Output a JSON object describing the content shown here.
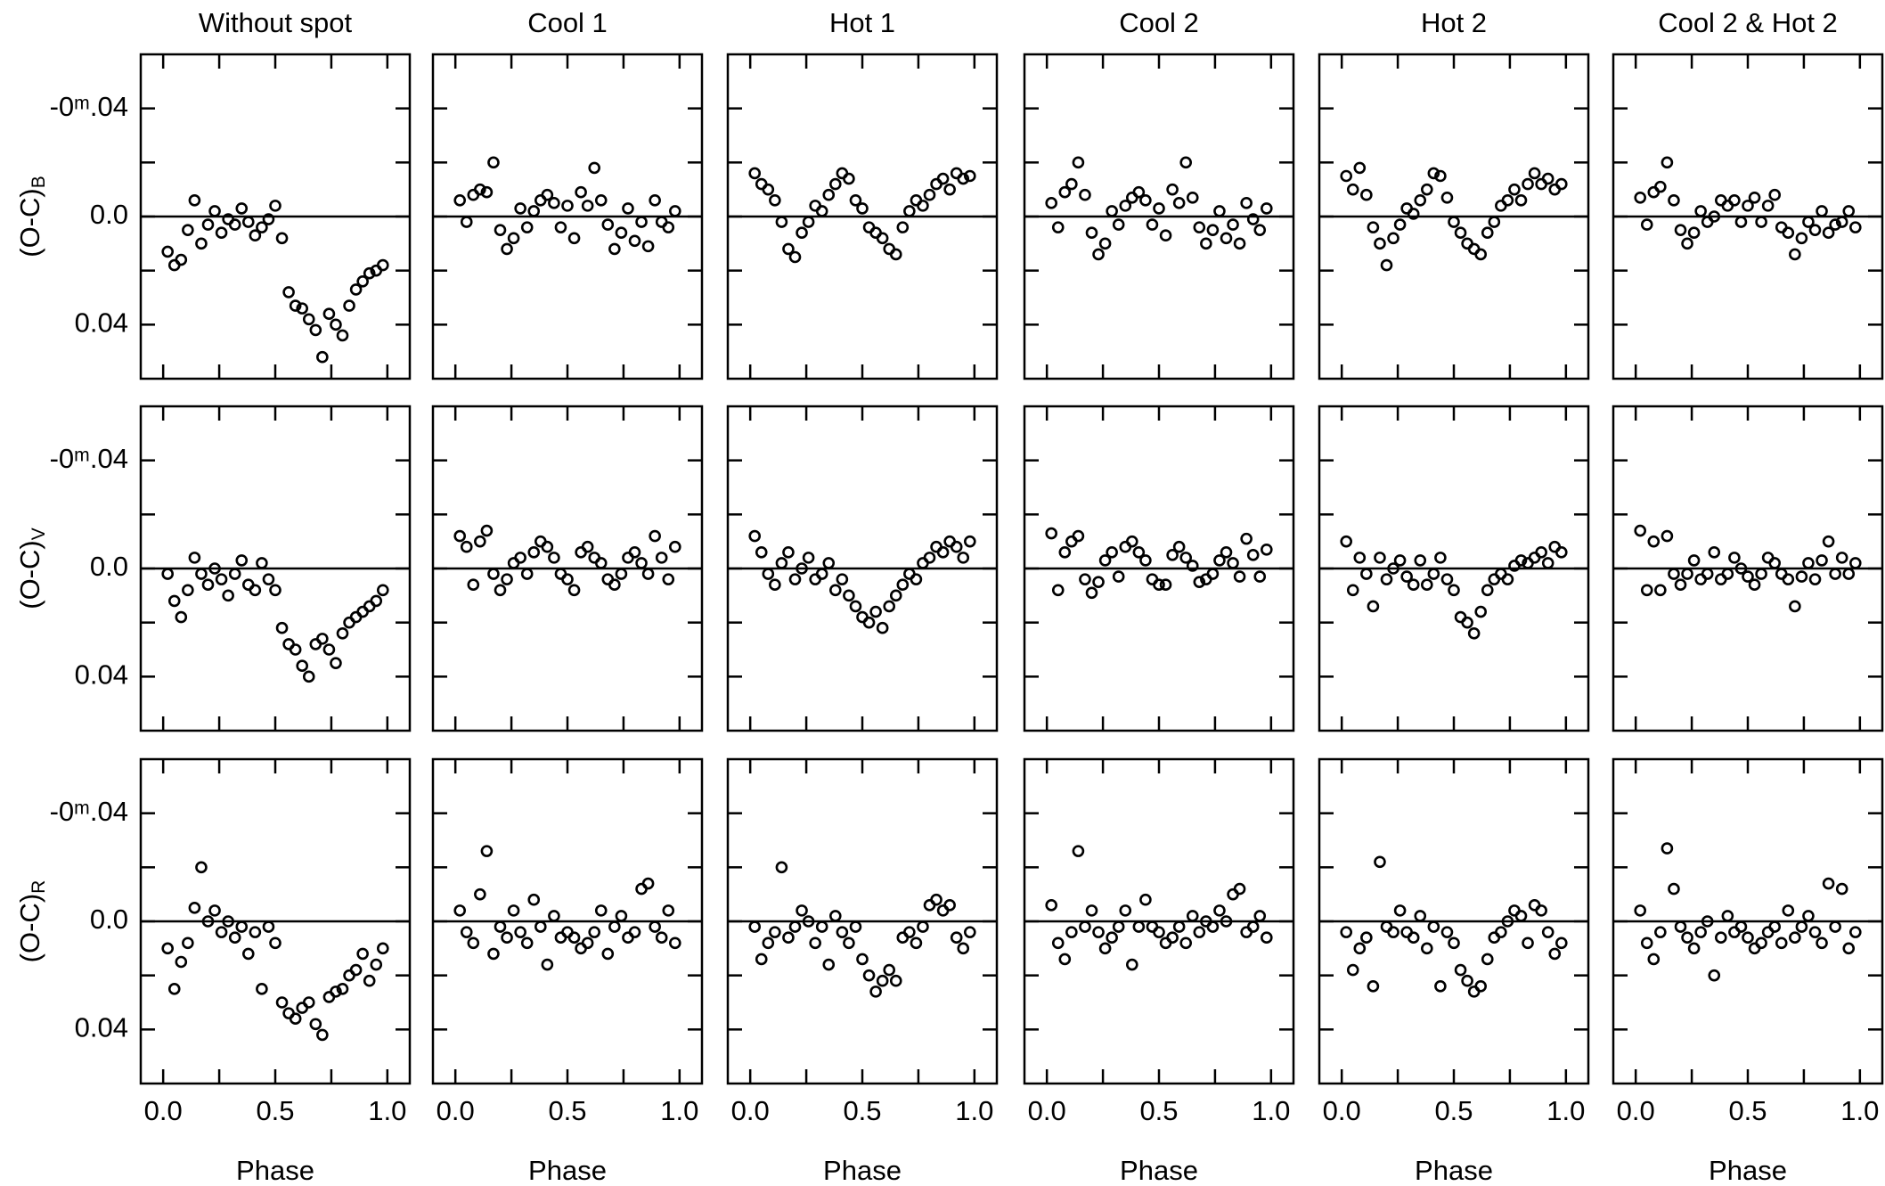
{
  "chart_data": {
    "type": "scatter",
    "columns": [
      "Without spot",
      "Cool 1",
      "Hot 1",
      "Cool 2",
      "Hot 2",
      "Cool 2 & Hot 2"
    ],
    "rows": [
      {
        "label": "(O-C)",
        "sub": "B"
      },
      {
        "label": "(O-C)",
        "sub": "V"
      },
      {
        "label": "(O-C)",
        "sub": "R"
      }
    ],
    "xlabel": "Phase",
    "xlim": [
      -0.1,
      1.1
    ],
    "xticks": [
      {
        "value": 0,
        "label": "0.0"
      },
      0.5,
      {
        "value": 1,
        "label": "1.0"
      }
    ],
    "xminor": [
      0.25,
      0.75
    ],
    "ylim": [
      -0.06,
      0.06
    ],
    "y_inverted": true,
    "yticks": [
      {
        "value": -0.04,
        "label": "-0ᵐ.04"
      },
      {
        "value": 0,
        "label": "0.0"
      },
      0.04
    ],
    "yminor": [
      -0.02,
      0.02
    ],
    "hline": 0,
    "marker_color": "#000000",
    "x": [
      0.02,
      0.05,
      0.08,
      0.11,
      0.14,
      0.17,
      0.2,
      0.23,
      0.26,
      0.29,
      0.32,
      0.35,
      0.38,
      0.41,
      0.44,
      0.47,
      0.5,
      0.53,
      0.56,
      0.59,
      0.62,
      0.65,
      0.68,
      0.71,
      0.74,
      0.77,
      0.8,
      0.83,
      0.86,
      0.89,
      0.92,
      0.95,
      0.98
    ],
    "panels": [
      [
        [
          0.013,
          0.018,
          0.016,
          0.005,
          -0.006,
          0.01,
          0.003,
          -0.002,
          0.006,
          0.001,
          0.003,
          -0.003,
          0.002,
          0.007,
          0.004,
          0.001,
          -0.004,
          0.008,
          0.028,
          0.033,
          0.034,
          0.038,
          0.042,
          0.052,
          0.036,
          0.04,
          0.044,
          0.033,
          0.027,
          0.024,
          0.021,
          0.02,
          0.018
        ],
        [
          -0.006,
          0.002,
          -0.008,
          -0.01,
          -0.009,
          -0.02,
          0.005,
          0.012,
          0.008,
          -0.003,
          0.004,
          -0.002,
          -0.006,
          -0.008,
          -0.005,
          0.004,
          -0.004,
          0.008,
          -0.009,
          -0.004,
          -0.018,
          -0.006,
          0.003,
          0.012,
          0.006,
          -0.003,
          0.009,
          0.002,
          0.011,
          -0.006,
          0.002,
          0.004,
          -0.002
        ],
        [
          -0.016,
          -0.012,
          -0.01,
          -0.006,
          0.002,
          0.012,
          0.015,
          0.006,
          0.002,
          -0.004,
          -0.002,
          -0.008,
          -0.012,
          -0.016,
          -0.014,
          -0.006,
          -0.003,
          0.004,
          0.006,
          0.008,
          0.012,
          0.014,
          0.004,
          -0.002,
          -0.006,
          -0.004,
          -0.008,
          -0.012,
          -0.014,
          -0.01,
          -0.016,
          -0.014,
          -0.015
        ],
        [
          -0.005,
          0.004,
          -0.009,
          -0.012,
          -0.02,
          -0.008,
          0.006,
          0.014,
          0.01,
          -0.002,
          0.003,
          -0.004,
          -0.007,
          -0.009,
          -0.006,
          0.003,
          -0.003,
          0.007,
          -0.01,
          -0.005,
          -0.02,
          -0.007,
          0.004,
          0.01,
          0.005,
          -0.002,
          0.008,
          0.003,
          0.01,
          -0.005,
          0.001,
          0.005,
          -0.003
        ],
        [
          -0.015,
          -0.01,
          -0.018,
          -0.008,
          0.004,
          0.01,
          0.018,
          0.008,
          0.003,
          -0.003,
          -0.001,
          -0.006,
          -0.01,
          -0.016,
          -0.015,
          -0.007,
          0.002,
          0.006,
          0.01,
          0.012,
          0.014,
          0.006,
          0.002,
          -0.004,
          -0.006,
          -0.01,
          -0.006,
          -0.012,
          -0.016,
          -0.012,
          -0.014,
          -0.01,
          -0.012
        ],
        [
          -0.007,
          0.003,
          -0.009,
          -0.011,
          -0.02,
          -0.006,
          0.005,
          0.01,
          0.006,
          -0.002,
          0.002,
          0.0,
          -0.006,
          -0.004,
          -0.006,
          0.002,
          -0.004,
          -0.007,
          0.002,
          -0.004,
          -0.008,
          0.004,
          0.006,
          0.014,
          0.008,
          0.002,
          0.005,
          -0.002,
          0.006,
          0.003,
          0.002,
          -0.002,
          0.004
        ]
      ],
      [
        [
          0.002,
          0.012,
          0.018,
          0.008,
          -0.004,
          0.002,
          0.006,
          0.0,
          0.004,
          0.01,
          0.002,
          -0.003,
          0.006,
          0.008,
          -0.002,
          0.004,
          0.008,
          0.022,
          0.028,
          0.03,
          0.036,
          0.04,
          0.028,
          0.026,
          0.03,
          0.035,
          0.024,
          0.02,
          0.018,
          0.016,
          0.014,
          0.012,
          0.008
        ],
        [
          -0.012,
          -0.008,
          0.006,
          -0.01,
          -0.014,
          0.002,
          0.008,
          0.004,
          -0.002,
          -0.004,
          0.002,
          -0.006,
          -0.01,
          -0.008,
          -0.004,
          0.002,
          0.004,
          0.008,
          -0.006,
          -0.008,
          -0.004,
          -0.002,
          0.004,
          0.006,
          0.002,
          -0.004,
          -0.006,
          -0.002,
          0.002,
          -0.012,
          -0.004,
          0.004,
          -0.008
        ],
        [
          -0.012,
          -0.006,
          0.002,
          0.006,
          -0.002,
          -0.006,
          0.004,
          0.0,
          -0.004,
          0.004,
          0.002,
          -0.002,
          0.008,
          0.004,
          0.01,
          0.014,
          0.018,
          0.02,
          0.016,
          0.022,
          0.014,
          0.01,
          0.006,
          0.002,
          0.004,
          -0.002,
          -0.004,
          -0.008,
          -0.006,
          -0.01,
          -0.008,
          -0.004,
          -0.01
        ],
        [
          -0.013,
          0.008,
          -0.006,
          -0.01,
          -0.012,
          0.004,
          0.009,
          0.005,
          -0.003,
          -0.006,
          0.003,
          -0.008,
          -0.01,
          -0.006,
          -0.003,
          0.004,
          0.006,
          0.006,
          -0.005,
          -0.008,
          -0.004,
          -0.001,
          0.005,
          0.004,
          0.002,
          -0.003,
          -0.006,
          -0.002,
          0.003,
          -0.011,
          -0.005,
          0.003,
          -0.007
        ],
        [
          -0.01,
          0.008,
          -0.004,
          0.002,
          0.014,
          -0.004,
          0.004,
          0.0,
          -0.003,
          0.003,
          0.006,
          -0.003,
          0.006,
          0.002,
          -0.004,
          0.004,
          0.008,
          0.018,
          0.02,
          0.024,
          0.016,
          0.008,
          0.004,
          0.002,
          0.004,
          -0.001,
          -0.003,
          -0.002,
          -0.004,
          -0.006,
          -0.002,
          -0.008,
          -0.006
        ],
        [
          -0.014,
          0.008,
          -0.01,
          0.008,
          -0.012,
          0.002,
          0.006,
          0.002,
          -0.003,
          0.004,
          0.002,
          -0.006,
          0.004,
          0.002,
          -0.004,
          0.0,
          0.003,
          0.006,
          0.002,
          -0.004,
          -0.002,
          0.002,
          0.004,
          0.014,
          0.003,
          -0.002,
          0.004,
          -0.003,
          -0.01,
          0.002,
          -0.004,
          0.002,
          -0.002
        ]
      ],
      [
        [
          0.01,
          0.025,
          0.015,
          0.008,
          -0.005,
          -0.02,
          0.0,
          -0.004,
          0.004,
          0.0,
          0.006,
          0.002,
          0.012,
          0.004,
          0.025,
          0.002,
          0.008,
          0.03,
          0.034,
          0.036,
          0.032,
          0.03,
          0.038,
          0.042,
          0.028,
          0.026,
          0.025,
          0.02,
          0.018,
          0.012,
          0.022,
          0.016,
          0.01
        ],
        [
          -0.004,
          0.004,
          0.008,
          -0.01,
          -0.026,
          0.012,
          0.002,
          0.006,
          -0.004,
          0.004,
          0.008,
          -0.008,
          0.002,
          0.016,
          -0.002,
          0.006,
          0.004,
          0.006,
          0.01,
          0.008,
          0.004,
          -0.004,
          0.012,
          0.002,
          -0.002,
          0.006,
          0.004,
          -0.012,
          -0.014,
          0.002,
          0.006,
          -0.004,
          0.008
        ],
        [
          0.002,
          0.014,
          0.008,
          0.004,
          -0.02,
          0.006,
          0.002,
          -0.004,
          0.0,
          0.008,
          0.002,
          0.016,
          -0.002,
          0.004,
          0.008,
          0.002,
          0.014,
          0.02,
          0.026,
          0.022,
          0.018,
          0.022,
          0.006,
          0.004,
          0.008,
          0.002,
          -0.006,
          -0.008,
          -0.004,
          -0.006,
          0.006,
          0.01,
          0.004
        ],
        [
          -0.006,
          0.008,
          0.014,
          0.004,
          -0.026,
          0.002,
          -0.004,
          0.004,
          0.01,
          0.006,
          0.002,
          -0.004,
          0.016,
          0.002,
          -0.008,
          0.002,
          0.004,
          0.008,
          0.006,
          0.002,
          0.008,
          -0.002,
          0.004,
          0.0,
          0.002,
          -0.004,
          0.0,
          -0.01,
          -0.012,
          0.004,
          0.002,
          -0.002,
          0.006
        ],
        [
          0.004,
          0.018,
          0.01,
          0.006,
          0.024,
          -0.022,
          0.002,
          0.004,
          -0.004,
          0.004,
          0.006,
          -0.002,
          0.01,
          0.002,
          0.024,
          0.004,
          0.008,
          0.018,
          0.022,
          0.026,
          0.024,
          0.014,
          0.006,
          0.004,
          0.0,
          -0.004,
          -0.002,
          0.008,
          -0.006,
          -0.004,
          0.004,
          0.012,
          0.008
        ],
        [
          -0.004,
          0.008,
          0.014,
          0.004,
          -0.027,
          -0.012,
          0.002,
          0.006,
          0.01,
          0.004,
          0.0,
          0.02,
          0.006,
          -0.002,
          0.004,
          0.002,
          0.006,
          0.01,
          0.008,
          0.004,
          0.002,
          0.008,
          -0.004,
          0.006,
          0.002,
          -0.002,
          0.004,
          0.008,
          -0.014,
          0.002,
          -0.012,
          0.01,
          0.004
        ]
      ]
    ]
  }
}
